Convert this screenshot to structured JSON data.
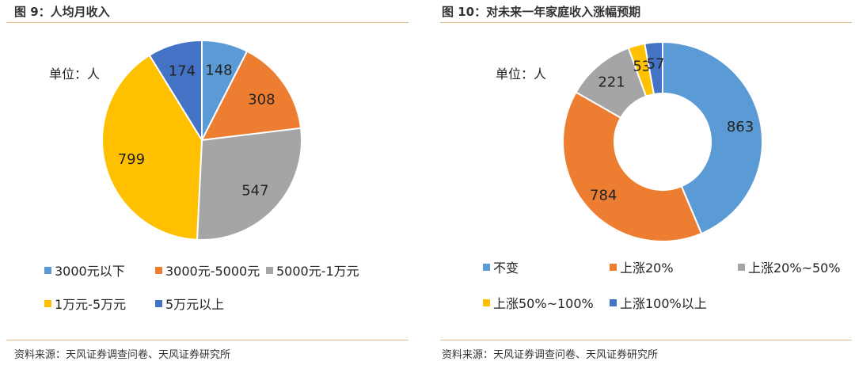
{
  "left_panel": {
    "title": "图 9：人均月收入",
    "unit": "单位：人",
    "source": "资料来源：天风证券调查问卷、天风证券研究所"
  },
  "right_panel": {
    "title": "图 10：对未来一年家庭收入涨幅预期",
    "unit": "单位：人",
    "source": "资料来源：天风证券调查问卷、天风证券研究所"
  },
  "chart_data": [
    {
      "type": "pie",
      "title": "人均月收入",
      "unit": "单位：人",
      "categories": [
        "3000元以下",
        "3000元-5000元",
        "5000元-1万元",
        "1万元-5万元",
        "5万元以上"
      ],
      "values": [
        148,
        308,
        547,
        799,
        174
      ],
      "colors": [
        "#5b9bd5",
        "#ed7d31",
        "#a5a5a5",
        "#ffc000",
        "#4472c4"
      ],
      "legend": "bottom"
    },
    {
      "type": "pie",
      "subtype": "doughnut",
      "title": "对未来一年家庭收入涨幅预期",
      "unit": "单位：人",
      "categories": [
        "不变",
        "上涨20%",
        "上涨20%~50%",
        "上涨50%~100%",
        "上涨100%以上"
      ],
      "values": [
        863,
        784,
        221,
        53,
        57
      ],
      "colors": [
        "#5b9bd5",
        "#ed7d31",
        "#a5a5a5",
        "#ffc000",
        "#4472c4"
      ],
      "legend": "bottom"
    }
  ]
}
